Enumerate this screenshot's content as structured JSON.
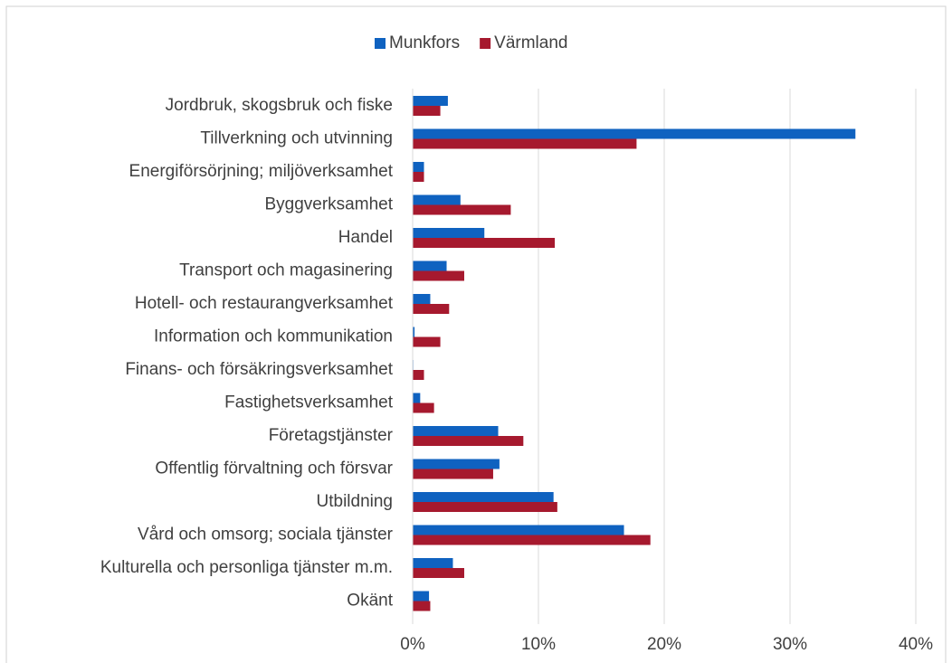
{
  "chart_data": {
    "type": "barh",
    "categories": [
      "Jordbruk, skogsbruk och fiske",
      "Tillverkning och utvinning",
      "Energiförsörjning; miljöverksamhet",
      "Byggverksamhet",
      "Handel",
      "Transport och magasinering",
      "Hotell- och restaurangverksamhet",
      "Information och kommunikation",
      "Finans- och försäkringsverksamhet",
      "Fastighetsverksamhet",
      "Företagstjänster",
      "Offentlig förvaltning och försvar",
      "Utbildning",
      "Vård och omsorg; sociala tjänster",
      "Kulturella och personliga tjänster m.m.",
      "Okänt"
    ],
    "series": [
      {
        "name": "Munkfors",
        "color": "#0f62c0",
        "values": [
          2.8,
          35.2,
          0.9,
          3.8,
          5.7,
          2.7,
          1.4,
          0.15,
          0.05,
          0.6,
          6.8,
          6.9,
          11.2,
          16.8,
          3.2,
          1.3
        ]
      },
      {
        "name": "Värmland",
        "color": "#a6192e",
        "values": [
          2.2,
          17.8,
          0.9,
          7.8,
          11.3,
          4.1,
          2.9,
          2.2,
          0.9,
          1.7,
          8.8,
          6.4,
          11.5,
          18.9,
          4.1,
          1.4
        ]
      }
    ],
    "xlim": [
      0,
      40
    ],
    "xticks": [
      {
        "value": 0,
        "label": "0%"
      },
      {
        "value": 10,
        "label": "10%"
      },
      {
        "value": 20,
        "label": "20%"
      },
      {
        "value": 30,
        "label": "30%"
      },
      {
        "value": 40,
        "label": "40%"
      }
    ],
    "grid": true,
    "legend": "top"
  }
}
